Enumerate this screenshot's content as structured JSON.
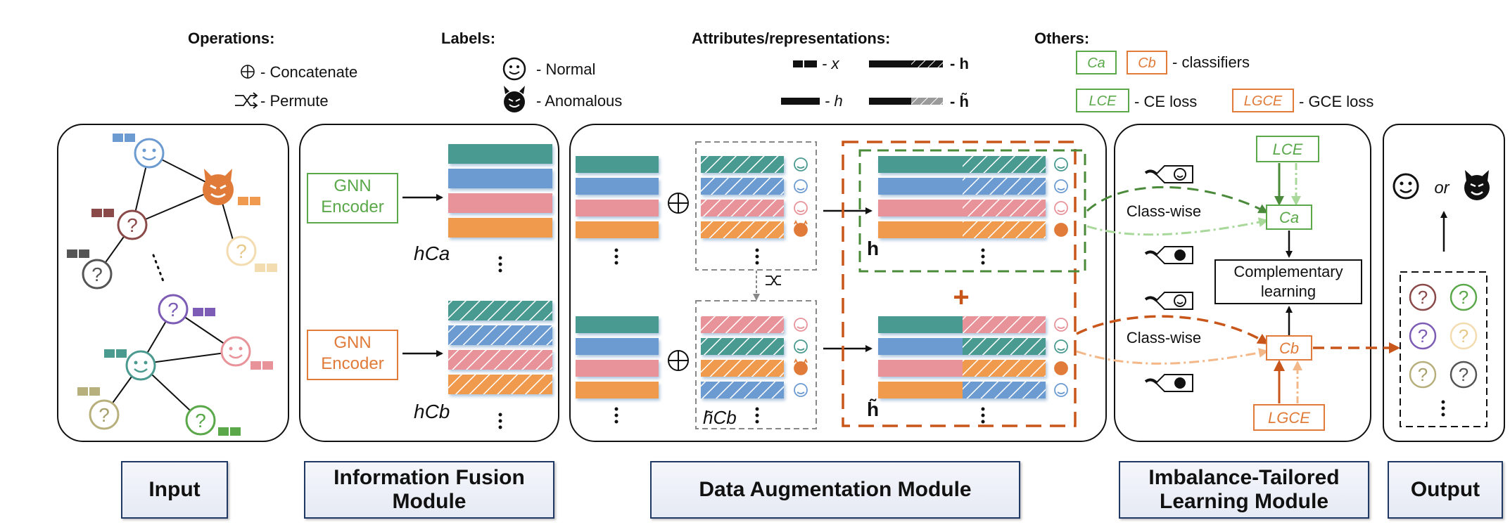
{
  "legend": {
    "operations_title": "Operations:",
    "concat_label": "- Concatenate",
    "permute_label": "- Permute",
    "labels_title": "Labels:",
    "normal_label": "- Normal",
    "anomalous_label": "- Anomalous",
    "attr_title": "Attributes/representations:",
    "x_label": "- x",
    "h_small_label": "- h",
    "h_bold_label": "- h",
    "h_tilde_label": "- h̃",
    "others_title": "Others:",
    "ca": "Ca",
    "cb": "Cb",
    "classifiers_label": "- classifiers",
    "lce": "LCE",
    "ce_loss_label": "- CE loss",
    "lgce": "LGCE",
    "gce_loss_label": "- GCE loss"
  },
  "fusion": {
    "gnn_encoder_top": "GNN Encoder",
    "gnn_encoder_bottom": "GNN Encoder",
    "h_ca": "hCa",
    "h_cb": "hCb"
  },
  "augmentation": {
    "h_tilde_cb": "h̃Cb",
    "h_label": "h",
    "h_tilde_label": "h̃",
    "plus": "+"
  },
  "imbalance": {
    "class_wise_top": "Class-wise",
    "class_wise_bottom": "Class-wise",
    "complementary": "Complementary learning",
    "lce": "LCE",
    "ca": "Ca",
    "cb": "Cb",
    "lgce": "LGCE"
  },
  "output": {
    "or_text": "or"
  },
  "module_labels": {
    "input": "Input",
    "fusion": "Information Fusion Module",
    "augmentation": "Data Augmentation Module",
    "imbalance": "Imbalance-Tailored Learning Module",
    "output": "Output"
  },
  "colors": {
    "teal": "#4a9a90",
    "blue": "#6c9bd1",
    "pink": "#e8939a",
    "orange": "#ef9a4e",
    "green": "#5aa84a",
    "dark_orange": "#d2691e"
  }
}
